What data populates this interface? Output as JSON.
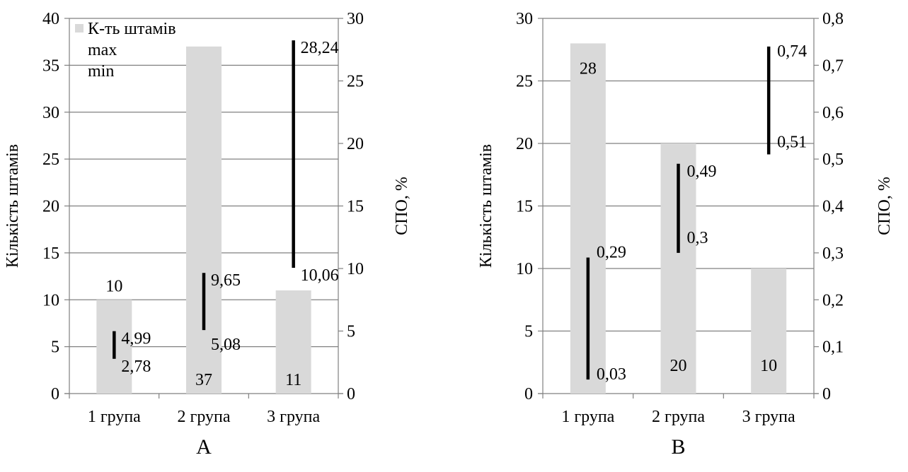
{
  "colors": {
    "bar": "#d9d9d9",
    "range": "#000000",
    "grid": "#808080",
    "axis": "#808080"
  },
  "chart_data": [
    {
      "type": "bar",
      "panel_label": "A",
      "categories": [
        "1 група",
        "2 група",
        "3 група"
      ],
      "values": [
        10,
        37,
        11
      ],
      "bar_value_labels": [
        "10",
        "37",
        "11"
      ],
      "ylabel": "Кількість штамів",
      "ylim": [
        0,
        40
      ],
      "yticks": [
        "0",
        "5",
        "10",
        "15",
        "20",
        "25",
        "30",
        "35",
        "40"
      ],
      "y2label": "СПО, %",
      "y2lim": [
        0,
        30
      ],
      "y2ticks": [
        "0",
        "5",
        "10",
        "15",
        "20",
        "25",
        "30"
      ],
      "range_series": {
        "max": [
          4.99,
          9.65,
          28.24
        ],
        "min": [
          2.78,
          5.08,
          10.06
        ]
      },
      "max_labels": [
        "4,99",
        "9,65",
        "28,24"
      ],
      "min_labels": [
        "2,78",
        "5,08",
        "10,06"
      ],
      "legend": {
        "placement": "top-left",
        "items": [
          "К-ть штамів",
          "max",
          "min"
        ]
      },
      "grid": true
    },
    {
      "type": "bar",
      "panel_label": "B",
      "categories": [
        "1 група",
        "2 група",
        "3 група"
      ],
      "values": [
        28,
        20,
        10
      ],
      "bar_value_labels": [
        "28",
        "20",
        "10"
      ],
      "ylabel": "Кількість штамів",
      "ylim": [
        0,
        30
      ],
      "yticks": [
        "0",
        "5",
        "10",
        "15",
        "20",
        "25",
        "30"
      ],
      "y2label": "СПО, %",
      "y2lim": [
        0,
        0.8
      ],
      "y2ticks": [
        "0",
        "0,1",
        "0,2",
        "0,3",
        "0,4",
        "0,5",
        "0,6",
        "0,7",
        "0,8"
      ],
      "range_series": {
        "max": [
          0.29,
          0.49,
          0.74
        ],
        "min": [
          0.03,
          0.3,
          0.51
        ]
      },
      "max_labels": [
        "0,29",
        "0,49",
        "0,74"
      ],
      "min_labels": [
        "0,03",
        "0,3",
        "0,51"
      ],
      "grid": true
    }
  ]
}
